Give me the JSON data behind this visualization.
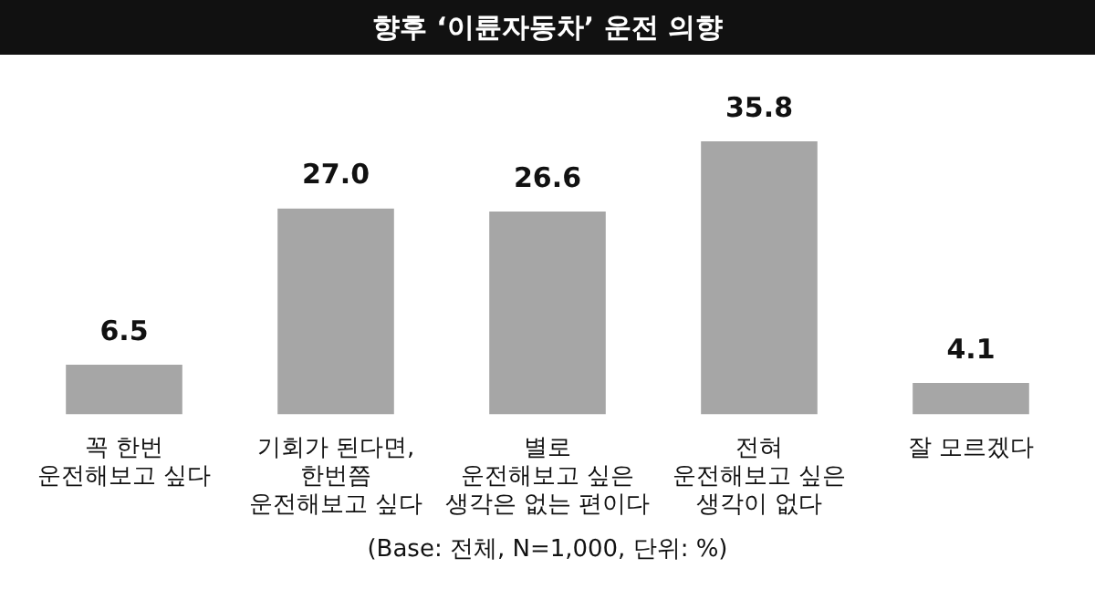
{
  "chart_data": {
    "type": "bar",
    "title": "향후 ‘이륜자동차’ 운전 의향",
    "categories": [
      "꼭 한번\n운전해보고 싶다",
      "기회가 된다면,\n한번쯤\n운전해보고 싶다",
      "별로\n운전해보고 싶은\n생각은 없는 편이다",
      "전혀\n운전해보고 싶은\n생각이 없다",
      "잘 모르겠다"
    ],
    "values": [
      6.5,
      27.0,
      26.6,
      35.8,
      4.1
    ],
    "value_labels": [
      "6.5",
      "27.0",
      "26.6",
      "35.8",
      "4.1"
    ],
    "color": "#a6a6a6",
    "annotations": [
      "(Base: 전체, N=1,000, 단위: %)"
    ]
  }
}
